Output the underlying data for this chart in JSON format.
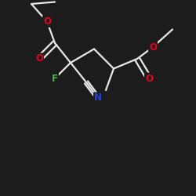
{
  "background_color": "#1c1c1c",
  "bond_color": "#e8e8e8",
  "atom_colors": {
    "O": "#e8001e",
    "N": "#2244dd",
    "F": "#44bb44",
    "C": "#e8e8e8"
  },
  "figsize": [
    2.5,
    2.5
  ],
  "dpi": 100,
  "bond_lw": 1.6,
  "font_size": 8.5
}
